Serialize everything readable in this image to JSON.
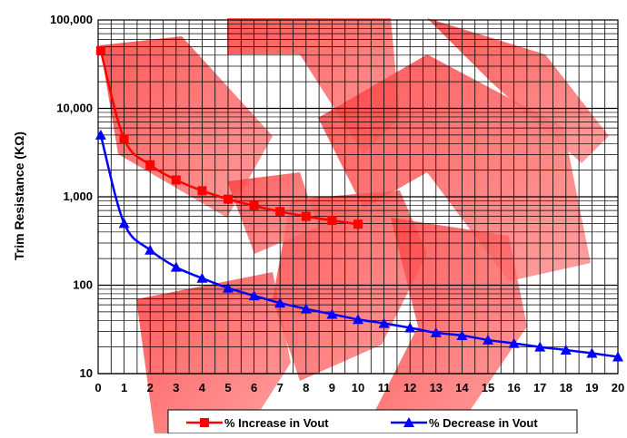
{
  "chart_data": {
    "type": "line",
    "title": "",
    "xlabel": "",
    "ylabel": "Trim Resistance (KΩ)",
    "x_scale": "linear",
    "y_scale": "log",
    "xlim": [
      0,
      20
    ],
    "ylim": [
      10,
      100000
    ],
    "grid": true,
    "legend_position": "bottom-center",
    "x_ticks": [
      "0",
      "1",
      "2",
      "3",
      "4",
      "5",
      "6",
      "7",
      "8",
      "9",
      "10",
      "11",
      "12",
      "13",
      "14",
      "15",
      "16",
      "17",
      "18",
      "19",
      "20"
    ],
    "y_ticks": [
      {
        "value": 10,
        "label": "10"
      },
      {
        "value": 100,
        "label": "100"
      },
      {
        "value": 1000,
        "label": "1,000"
      },
      {
        "value": 10000,
        "label": "10,000"
      },
      {
        "value": 100000,
        "label": "100,000"
      }
    ],
    "series": [
      {
        "name": "% Increase in Vout",
        "color": "#ff0000",
        "marker": "square",
        "x": [
          0.1,
          1,
          2,
          3,
          4,
          5,
          6,
          7,
          8,
          9,
          10
        ],
        "y": [
          45000,
          4500,
          2300,
          1550,
          1170,
          940,
          790,
          680,
          600,
          540,
          490
        ]
      },
      {
        "name": "% Decrease in Vout",
        "color": "#0000ff",
        "marker": "triangle",
        "x": [
          0.1,
          1,
          2,
          3,
          4,
          5,
          6,
          7,
          8,
          9,
          10,
          11,
          12,
          13,
          14,
          15,
          16,
          17,
          18,
          19,
          20
        ],
        "y": [
          5000,
          500,
          250,
          160,
          120,
          93,
          76,
          63,
          54,
          47,
          41,
          37,
          33,
          29,
          27,
          24,
          22,
          20,
          18.5,
          17,
          15.5
        ]
      }
    ]
  }
}
